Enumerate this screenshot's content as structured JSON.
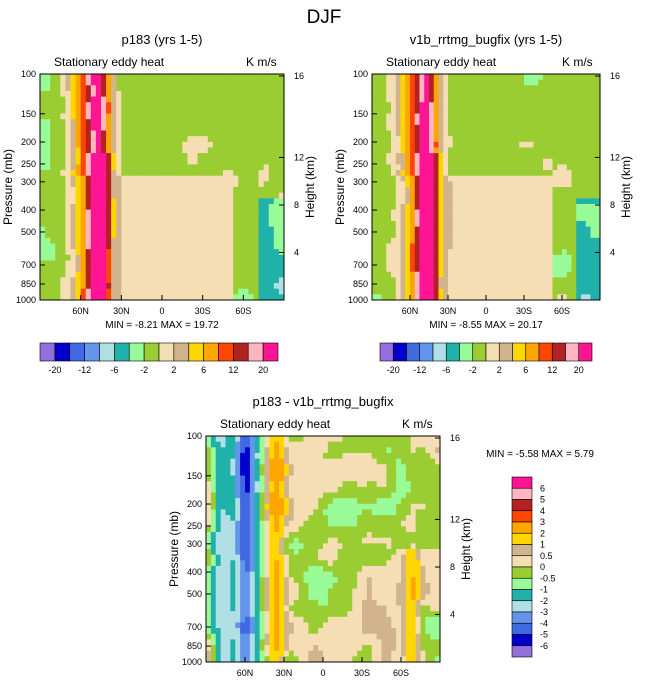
{
  "figure_title": "DJF",
  "chart_data": [
    {
      "type": "heatmap",
      "title": "p183 (yrs 1-5)",
      "subtitle_left": "Stationary eddy heat",
      "subtitle_right": "K m/s",
      "ylabel": "Pressure (mb)",
      "ylabel_right": "Height (km)",
      "x_ticks": [
        "60N",
        "30N",
        "0",
        "30S",
        "60S"
      ],
      "x_tick_values": [
        60,
        30,
        0,
        -30,
        -60
      ],
      "xlim": [
        90,
        -90
      ],
      "y_ticks": [
        "100",
        "150",
        "200",
        "250",
        "300",
        "400",
        "500",
        "700",
        "850",
        "1000"
      ],
      "y_tick_values": [
        100,
        150,
        200,
        250,
        300,
        400,
        500,
        700,
        850,
        1000
      ],
      "ylim": [
        1000,
        100
      ],
      "y_right_ticks": [
        "4",
        "8",
        "12",
        "16"
      ],
      "stats": "MIN =  -8.21   MAX =  19.72",
      "contour_levels": [
        "-20",
        "-16",
        "-12",
        "-8",
        "-6",
        "-4",
        "-2",
        "-1",
        "1",
        "2",
        "4",
        "6",
        "8",
        "12",
        "16",
        "20"
      ],
      "colorbar_labels": [
        "-20",
        "-12",
        "-6",
        "-2",
        "2",
        "6",
        "12",
        "20"
      ]
    },
    {
      "type": "heatmap",
      "title": "v1b_rrtmg_bugfix (yrs 1-5)",
      "subtitle_left": "Stationary eddy heat",
      "subtitle_right": "K m/s",
      "ylabel": "Pressure (mb)",
      "ylabel_right": "Height (km)",
      "x_ticks": [
        "60N",
        "30N",
        "0",
        "30S",
        "60S"
      ],
      "x_tick_values": [
        60,
        30,
        0,
        -30,
        -60
      ],
      "xlim": [
        90,
        -90
      ],
      "y_ticks": [
        "100",
        "150",
        "200",
        "250",
        "300",
        "400",
        "500",
        "700",
        "850",
        "1000"
      ],
      "y_tick_values": [
        100,
        150,
        200,
        250,
        300,
        400,
        500,
        700,
        850,
        1000
      ],
      "ylim": [
        1000,
        100
      ],
      "y_right_ticks": [
        "4",
        "8",
        "12",
        "16"
      ],
      "stats": "MIN =  -8.55   MAX =  20.17",
      "contour_levels": [
        "-20",
        "-16",
        "-12",
        "-8",
        "-6",
        "-4",
        "-2",
        "-1",
        "1",
        "2",
        "4",
        "6",
        "8",
        "12",
        "16",
        "20"
      ],
      "colorbar_labels": [
        "-20",
        "-12",
        "-6",
        "-2",
        "2",
        "6",
        "12",
        "20"
      ]
    },
    {
      "type": "heatmap",
      "title": "p183 - v1b_rrtmg_bugfix",
      "subtitle_left": "Stationary eddy heat",
      "subtitle_right": "K m/s",
      "ylabel": "Pressure (mb)",
      "ylabel_right": "Height (km)",
      "x_ticks": [
        "60N",
        "30N",
        "0",
        "30S",
        "60S"
      ],
      "x_tick_values": [
        60,
        30,
        0,
        -30,
        -60
      ],
      "xlim": [
        90,
        -90
      ],
      "y_ticks": [
        "100",
        "150",
        "200",
        "250",
        "300",
        "400",
        "500",
        "700",
        "850",
        "1000"
      ],
      "y_tick_values": [
        100,
        150,
        200,
        250,
        300,
        400,
        500,
        700,
        850,
        1000
      ],
      "ylim": [
        1000,
        100
      ],
      "y_right_ticks": [
        "4",
        "8",
        "12",
        "16"
      ],
      "stats": "MIN =  -5.58   MAX =   5.79",
      "colorbar_labels": [
        "6",
        "5",
        "4",
        "3",
        "2",
        "1",
        "0.5",
        "0",
        "-0.5",
        "-1",
        "-2",
        "-3",
        "-4",
        "-5",
        "-6"
      ]
    }
  ],
  "palettes": {
    "abs": [
      "#9370db",
      "#0000cd",
      "#4169e1",
      "#6495ed",
      "#b0e0e6",
      "#20b2aa",
      "#98fb98",
      "#9acd32",
      "#f5deb3",
      "#d2b48c",
      "#ffd700",
      "#ffa500",
      "#ff4500",
      "#b22222",
      "#ffb6c1",
      "#ff1493"
    ],
    "diff": [
      "#ff1493",
      "#ffb6c1",
      "#b22222",
      "#ff4500",
      "#ffa500",
      "#ffd700",
      "#d2b48c",
      "#f5deb3",
      "#9acd32",
      "#98fb98",
      "#20b2aa",
      "#b0e0e6",
      "#6495ed",
      "#4169e1",
      "#0000cd",
      "#9370db"
    ]
  }
}
